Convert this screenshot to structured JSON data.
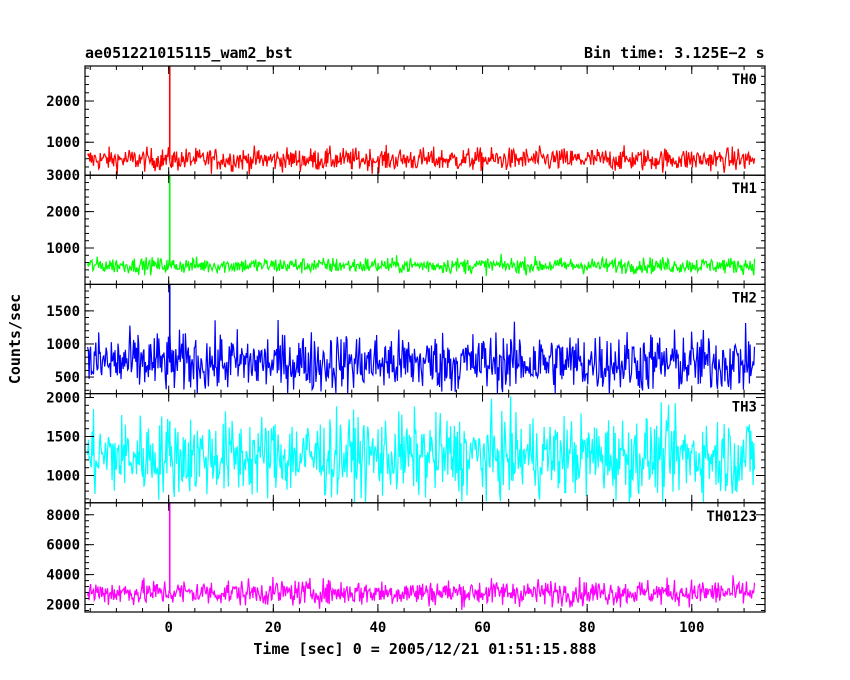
{
  "header": {
    "obs_id": "ae051221015115_wam2_bst",
    "bin_time": "Bin time: 3.125E−2 s"
  },
  "chart_data": {
    "type": "line",
    "xlabel": "Time [sec] 0 = 2005/12/21 01:51:15.888",
    "ylabel": "Counts/sec",
    "xlim": [
      -16,
      114
    ],
    "x_ticks": [
      0,
      20,
      40,
      60,
      80,
      100
    ],
    "x_start": -15.5,
    "x_end": 112,
    "spike_at": 0.2,
    "panels": [
      {
        "name": "TH0",
        "color": "#ff0000",
        "ylim": [
          200,
          2850
        ],
        "yticks": [
          1000,
          2000
        ],
        "baseline": 580,
        "noise": 140,
        "spike": 2850
      },
      {
        "name": "TH1",
        "color": "#00ff00",
        "ylim": [
          0,
          3000
        ],
        "yticks": [
          1000,
          2000,
          3000
        ],
        "baseline": 520,
        "noise": 110,
        "spike": 3000
      },
      {
        "name": "TH2",
        "color": "#0000ff",
        "ylim": [
          250,
          1900
        ],
        "yticks": [
          500,
          1000,
          1500
        ],
        "baseline": 720,
        "noise": 230,
        "spike": 1900
      },
      {
        "name": "TH3",
        "color": "#00ffff",
        "ylim": [
          650,
          2050
        ],
        "yticks": [
          1000,
          1500,
          2000
        ],
        "baseline": 1250,
        "noise": 260,
        "spike": 1700
      },
      {
        "name": "TH0123",
        "color": "#ff00ff",
        "ylim": [
          1500,
          8800
        ],
        "yticks": [
          2000,
          4000,
          6000,
          8000
        ],
        "baseline": 2800,
        "noise": 430,
        "spike": 8800
      }
    ]
  }
}
